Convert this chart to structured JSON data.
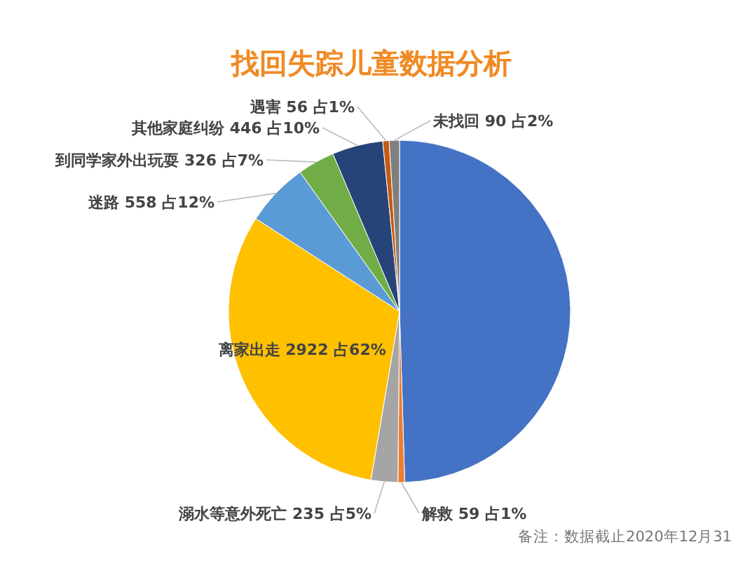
{
  "chart_data": {
    "type": "pie",
    "title": "找回失踪儿童数据分析",
    "categories": [
      null,
      "解救",
      "溺水等意外死亡",
      "离家出走",
      "迷路",
      "到同学家外出玩耍",
      "其他家庭纠纷",
      "遇害",
      "未找回"
    ],
    "values": [
      4602,
      59,
      235,
      2922,
      558,
      326,
      446,
      56,
      90
    ],
    "value_labels": [
      null,
      "59 占1%",
      "235 占5%",
      "2922 占62%",
      "558 占12%",
      "326 占7%",
      "446 占10%",
      "56 占1%",
      "90 占2%"
    ],
    "colors": [
      "#4472c4",
      "#ed7d31",
      "#a5a5a5",
      "#ffc000",
      "#5b9bd5",
      "#70ad47",
      "#264478",
      "#c55a11",
      "#7f7f7f"
    ],
    "annotations": [
      "备注：数据截止2020年12月31"
    ]
  }
}
